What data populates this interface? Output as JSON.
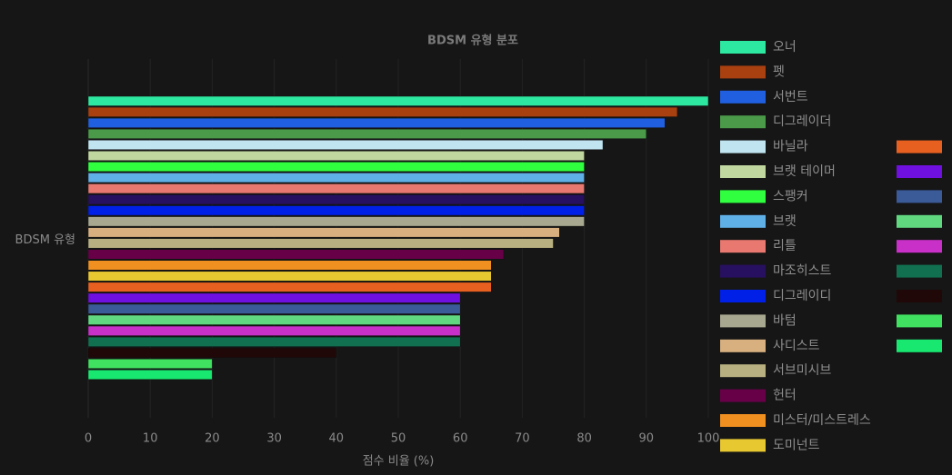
{
  "chart_data": {
    "type": "hbar",
    "title": "BDSM 유형 분포",
    "x_label": "점수 비율 (%)",
    "categories": [
      "BDSM 유형"
    ],
    "xlim": [
      0,
      100
    ],
    "xticks": [
      0,
      10,
      20,
      30,
      40,
      50,
      60,
      70,
      80,
      90,
      100
    ],
    "grid": true,
    "series": [
      {
        "name": "오너",
        "color": "#2de8a0",
        "values": [
          100
        ]
      },
      {
        "name": "펫",
        "color": "#a8400f",
        "values": [
          95
        ]
      },
      {
        "name": "서번트",
        "color": "#2060e0",
        "values": [
          93
        ]
      },
      {
        "name": "디그레이더",
        "color": "#4a9a4a",
        "values": [
          90
        ]
      },
      {
        "name": "바닐라",
        "color": "#c0e4f0",
        "values": [
          83
        ]
      },
      {
        "name": "브랫 테이머",
        "color": "#c0d8a0",
        "values": [
          80
        ]
      },
      {
        "name": "스팽커",
        "color": "#30ff40",
        "values": [
          80
        ]
      },
      {
        "name": "브랫",
        "color": "#60b0e8",
        "values": [
          80
        ]
      },
      {
        "name": "리틀",
        "color": "#e87870",
        "values": [
          80
        ]
      },
      {
        "name": "마조히스트",
        "color": "#281060",
        "values": [
          80
        ]
      },
      {
        "name": "디그레이디",
        "color": "#0020e8",
        "values": [
          80
        ]
      },
      {
        "name": "바텀",
        "color": "#a8a890",
        "values": [
          80
        ]
      },
      {
        "name": "사디스트",
        "color": "#d8b080",
        "values": [
          76
        ]
      },
      {
        "name": "서브미시브",
        "color": "#b8b080",
        "values": [
          75
        ]
      },
      {
        "name": "헌터",
        "color": "#680048",
        "values": [
          67
        ]
      },
      {
        "name": "미스터/미스트레스",
        "color": "#f09020",
        "values": [
          65
        ]
      },
      {
        "name": "도미넌트",
        "color": "#e8c830",
        "values": [
          65
        ]
      },
      {
        "color": "#e86020",
        "values": [
          65
        ]
      },
      {
        "color": "#7010e0",
        "values": [
          60
        ]
      },
      {
        "color": "#3a5a98",
        "values": [
          60
        ]
      },
      {
        "color": "#60d880",
        "values": [
          60
        ]
      },
      {
        "color": "#c830c8",
        "values": [
          60
        ]
      },
      {
        "color": "#107050",
        "values": [
          60
        ]
      },
      {
        "color": "#200808",
        "values": [
          40
        ]
      },
      {
        "color": "#40e060",
        "values": [
          20
        ]
      },
      {
        "color": "#18e870",
        "values": [
          20
        ]
      }
    ]
  }
}
